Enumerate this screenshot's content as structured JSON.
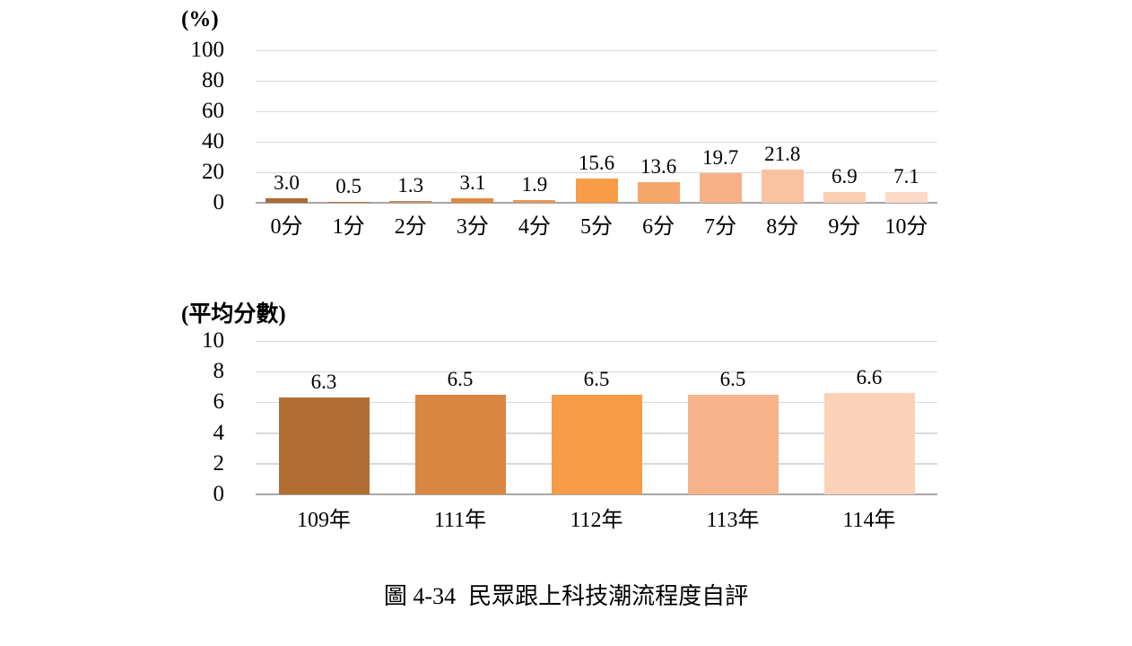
{
  "page": {
    "background": "#ffffff"
  },
  "colors": {
    "gridline": "#d9d9d9",
    "axis_line": "#a6a6a6",
    "text": "#000000"
  },
  "caption": {
    "figure_label": "圖 4-34",
    "title": "民眾跟上科技潮流程度自評"
  },
  "chart_data": [
    {
      "type": "bar",
      "name": "score-distribution-percent",
      "axis_label": "(%)",
      "categories": [
        "0分",
        "1分",
        "2分",
        "3分",
        "4分",
        "5分",
        "6分",
        "7分",
        "8分",
        "9分",
        "10分"
      ],
      "values": [
        3.0,
        0.5,
        1.3,
        3.1,
        1.9,
        15.6,
        13.6,
        19.7,
        21.8,
        6.9,
        7.1
      ],
      "value_labels": [
        "3.0",
        "0.5",
        "1.3",
        "3.1",
        "1.9",
        "15.6",
        "13.6",
        "19.7",
        "21.8",
        "6.9",
        "7.1"
      ],
      "bar_colors": [
        "#ac6b31",
        "#b9793c",
        "#c18f5e",
        "#e08a40",
        "#e69858",
        "#f79c47",
        "#f6a76b",
        "#f6b286",
        "#f9c3a2",
        "#fbcfb3",
        "#fcdac7"
      ],
      "ylim": [
        0,
        100
      ],
      "yticks": [
        100,
        80,
        60,
        40,
        20,
        0
      ],
      "grid": true,
      "legend": "none"
    },
    {
      "type": "bar",
      "name": "average-score-by-year",
      "axis_label": "(平均分數)",
      "categories": [
        "109年",
        "111年",
        "112年",
        "113年",
        "114年"
      ],
      "values": [
        6.3,
        6.5,
        6.5,
        6.5,
        6.6
      ],
      "value_labels": [
        "6.3",
        "6.5",
        "6.5",
        "6.5",
        "6.6"
      ],
      "bar_colors": [
        "#b06e33",
        "#d98640",
        "#f69c46",
        "#f7b389",
        "#fbd1b8"
      ],
      "ylim": [
        0,
        10
      ],
      "yticks": [
        10,
        8,
        6,
        4,
        2,
        0
      ],
      "grid": true,
      "legend": "none"
    }
  ]
}
